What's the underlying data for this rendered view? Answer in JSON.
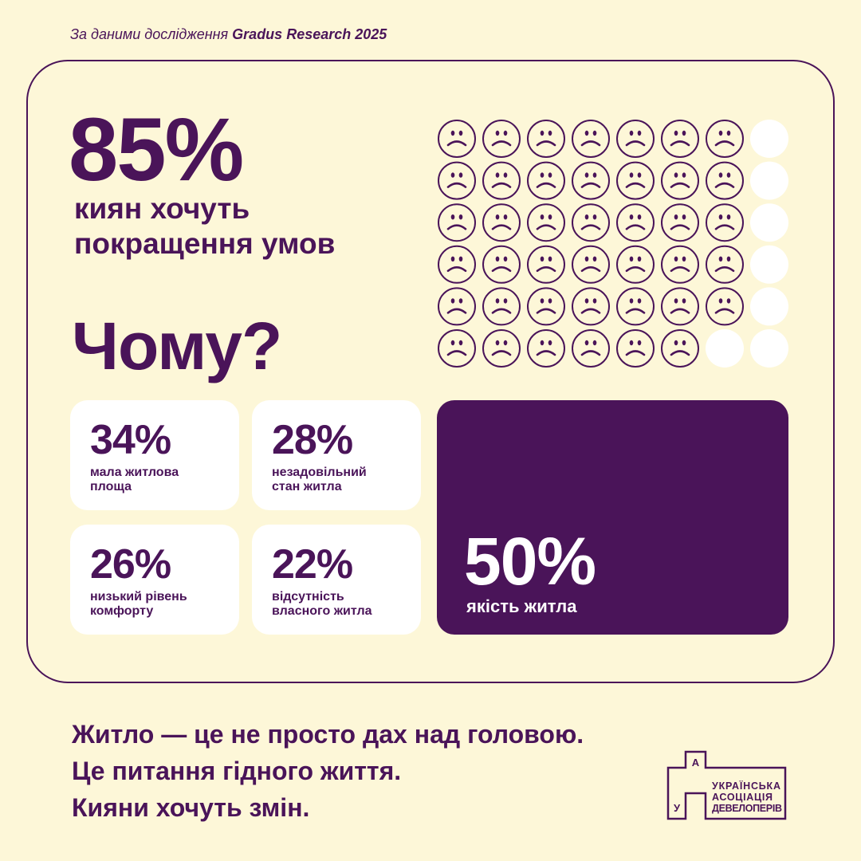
{
  "source": {
    "prefix": "За даними дослідження ",
    "brand": "Gradus Research 2025"
  },
  "headline": {
    "value": "85%",
    "line1": "киян хочуть",
    "line2": "покращення умов"
  },
  "question": "Чому?",
  "pictograph": {
    "total": 48,
    "filled": 41,
    "columns": 8,
    "filled_icon": "sad-face-icon",
    "empty_icon": "white-circle"
  },
  "reasons": [
    {
      "value": "34%",
      "line1": "мала житлова",
      "line2": "площа"
    },
    {
      "value": "28%",
      "line1": "незадовільний",
      "line2": "стан житла"
    },
    {
      "value": "26%",
      "line1": "низький рівень",
      "line2": "комфорту"
    },
    {
      "value": "22%",
      "line1": "відсутність",
      "line2": "власного житла"
    }
  ],
  "highlight": {
    "value": "50%",
    "label": "якість житла"
  },
  "tagline": [
    "Житло — це не просто дах над головою.",
    "Це питання гідного життя.",
    "Кияни хочуть змін."
  ],
  "logo": {
    "letters": [
      "А",
      "У"
    ],
    "text": [
      "УКРАЇНСЬКА",
      "АСОЦІАЦІЯ",
      "ДЕВЕЛОПЕРІВ"
    ]
  },
  "colors": {
    "background": "#fdf7d8",
    "accent": "#4a1459",
    "card": "#ffffff"
  }
}
